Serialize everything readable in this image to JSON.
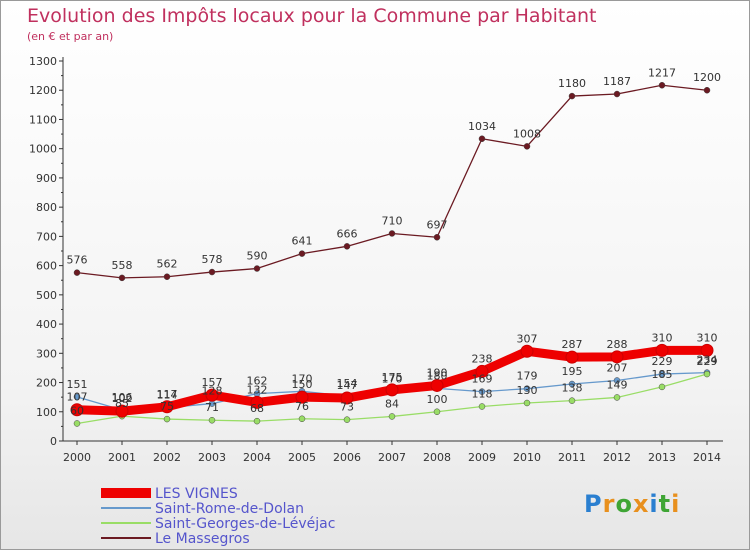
{
  "title": "Evolution des Impôts locaux pour la Commune par Habitant",
  "subtitle": "(en € et par an)",
  "logo": "Proxiti",
  "chart_data": {
    "type": "line",
    "x": [
      2000,
      2001,
      2002,
      2003,
      2004,
      2005,
      2006,
      2007,
      2008,
      2009,
      2010,
      2011,
      2012,
      2013,
      2014
    ],
    "ylim": [
      0,
      1300
    ],
    "yticks": [
      0,
      100,
      200,
      300,
      400,
      500,
      600,
      700,
      800,
      900,
      1000,
      1100,
      1200,
      1300
    ],
    "grid": false,
    "legend": "bottom-left",
    "series": [
      {
        "name": "LES VIGNES",
        "color": "#ee0000",
        "values": [
          107,
          102,
          117,
          157,
          132,
          150,
          147,
          175,
          190,
          238,
          307,
          287,
          288,
          310,
          310
        ]
      },
      {
        "name": "Saint-Rome-de-Dolan",
        "color": "#6699cc",
        "values": [
          151,
          106,
          114,
          128,
          162,
          170,
          154,
          170,
          180,
          169,
          179,
          195,
          207,
          229,
          234
        ]
      },
      {
        "name": "Saint-Georges-de-Lévéjac",
        "color": "#99dd66",
        "values": [
          60,
          85,
          75,
          71,
          68,
          76,
          73,
          84,
          100,
          118,
          130,
          138,
          149,
          185,
          229
        ]
      },
      {
        "name": "Le Massegros",
        "color": "#6b1a22",
        "values": [
          576,
          558,
          562,
          578,
          590,
          641,
          666,
          710,
          697,
          1034,
          1008,
          1180,
          1187,
          1217,
          1200
        ]
      }
    ]
  }
}
